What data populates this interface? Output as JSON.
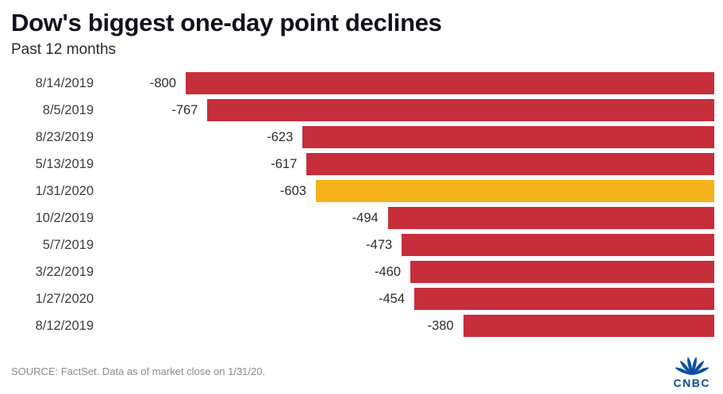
{
  "header": {
    "title": "Dow's biggest one-day point declines",
    "subtitle": "Past 12 months"
  },
  "footer": {
    "source": "SOURCE: FactSet. Data as of market close on 1/31/20.",
    "logo_text": "CNBC"
  },
  "colors": {
    "bar": "#c72e3c",
    "highlight": "#f6b21b",
    "title_text": "#10101f",
    "logo_blue": "#0b4ea2"
  },
  "chart_data": {
    "type": "bar",
    "orientation": "horizontal",
    "title": "Dow's biggest one-day point declines",
    "subtitle": "Past 12 months",
    "categories": [
      "8/14/2019",
      "8/5/2019",
      "8/23/2019",
      "5/13/2019",
      "1/31/2020",
      "10/2/2019",
      "5/7/2019",
      "3/22/2019",
      "1/27/2020",
      "8/12/2019"
    ],
    "values": [
      -800,
      -767,
      -623,
      -617,
      -603,
      -494,
      -473,
      -460,
      -454,
      -380
    ],
    "highlight_index": 4,
    "highlight_category": "1/31/2020",
    "value_labels_shown": true,
    "bars_right_aligned": true,
    "grid": false,
    "legend": false,
    "scale_max": 920
  }
}
